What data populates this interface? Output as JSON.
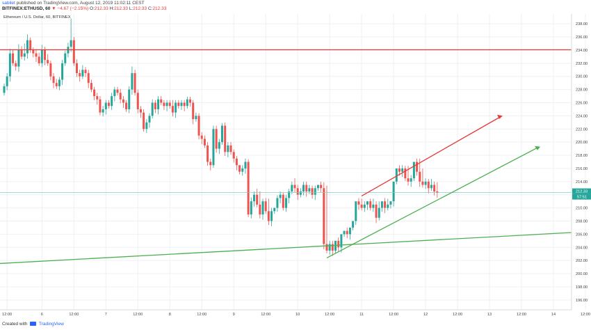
{
  "header": {
    "author": "sabilet",
    "published_text": "published on TradingView.com, August 12, 2019 11:02:11 CEST",
    "symbol": "BITFINEX:ETHUSD, 60",
    "change_symbol": "▼",
    "change_text": "−4.67 (−2.15%)",
    "o_label": "O:",
    "o_value": "212.33",
    "h_label": "H:",
    "h_value": "212.33",
    "l_label": "L:",
    "l_value": "212.33",
    "c_label": "C:",
    "c_value": "212.33"
  },
  "footer": {
    "prefix": "Created with",
    "brand": "TradingView"
  },
  "colors": {
    "up": "#26a69a",
    "down": "#ef5350",
    "resistance": "#e53935",
    "support": "#4caf50",
    "price_line": "#80cbc4",
    "grid": "#eef0f3"
  },
  "chart_data": {
    "type": "candlestick",
    "title": "Ethereum / U.S. Dollar, 60, BITFINEX",
    "ylim": [
      194.5,
      239.5
    ],
    "y_ticks": [
      "196.00",
      "198.00",
      "200.00",
      "202.00",
      "204.00",
      "206.00",
      "208.00",
      "210.00",
      "212.00",
      "214.00",
      "216.00",
      "218.00",
      "220.00",
      "222.00",
      "224.00",
      "226.00",
      "228.00",
      "230.00",
      "232.00",
      "234.00",
      "236.00",
      "238.00"
    ],
    "x_ticks": [
      {
        "label": "12:00",
        "i": 1
      },
      {
        "label": "6",
        "i": 13
      },
      {
        "label": "12:00",
        "i": 24
      },
      {
        "label": "7",
        "i": 35
      },
      {
        "label": "12:00",
        "i": 46
      },
      {
        "label": "8",
        "i": 57
      },
      {
        "label": "12:00",
        "i": 68
      },
      {
        "label": "9",
        "i": 79
      },
      {
        "label": "12:00",
        "i": 90
      },
      {
        "label": "10",
        "i": 101
      },
      {
        "label": "12:00",
        "i": 112
      },
      {
        "label": "11",
        "i": 123
      },
      {
        "label": "12:00",
        "i": 134
      },
      {
        "label": "12",
        "i": 145
      },
      {
        "label": "12:00",
        "i": 156
      },
      {
        "label": "13",
        "i": 167
      },
      {
        "label": "12:00",
        "i": 178
      },
      {
        "label": "14",
        "i": 189
      },
      {
        "label": "12:00",
        "i": 200
      }
    ],
    "last_price": "212.33",
    "countdown": "57:51",
    "closes": [
      228.5,
      230,
      233.5,
      232,
      231.5,
      234,
      233,
      233.5,
      235.5,
      234,
      233.5,
      233,
      232,
      234,
      232.5,
      232,
      230,
      229,
      228.5,
      229.5,
      232,
      233.5,
      234.5,
      235.5,
      232,
      230.5,
      230,
      231,
      230.5,
      229,
      228,
      227,
      226.5,
      224.5,
      225,
      226,
      225.5,
      227,
      228,
      227.5,
      226.5,
      226,
      225,
      228,
      230.5,
      227.5,
      225,
      224.5,
      222,
      223,
      224,
      226,
      225,
      226.5,
      226,
      225.5,
      226,
      225.5,
      224.5,
      226,
      225.5,
      226,
      225.5,
      226.5,
      226,
      223.5,
      224,
      221,
      220.5,
      219.5,
      217,
      216.5,
      222,
      219,
      220,
      222.5,
      218.5,
      219.5,
      218.5,
      217.5,
      216.5,
      215.5,
      216,
      217,
      209,
      211,
      212,
      210.5,
      209,
      211,
      209.5,
      208,
      209.5,
      210,
      211.5,
      212,
      210,
      211.5,
      212.5,
      213.5,
      213,
      212,
      212.5,
      213.5,
      212.5,
      213,
      212,
      213,
      213.5,
      213,
      204.5,
      203.5,
      204.5,
      203.5,
      205,
      204,
      206,
      206.5,
      206,
      207,
      208,
      211,
      210.5,
      210,
      210.5,
      211,
      210,
      210.5,
      208.5,
      210,
      211,
      210,
      210.5,
      211,
      214,
      216,
      215.5,
      216,
      214.5,
      214,
      214.5,
      217,
      215.5,
      214,
      213.5,
      214,
      213,
      213.5,
      212.5,
      212.33
    ],
    "opens": [
      227.5,
      228.5,
      230,
      233.5,
      232,
      231.5,
      234,
      233,
      233.5,
      235.5,
      234,
      233.5,
      233,
      232,
      234,
      232.5,
      232,
      230,
      229,
      228.5,
      229.5,
      232,
      233.5,
      234.5,
      235.5,
      232,
      230.5,
      230,
      231,
      230.5,
      229,
      228,
      227,
      226.5,
      224.5,
      225,
      226,
      225.5,
      227,
      228,
      227.5,
      226.5,
      226,
      225,
      228,
      230.5,
      227.5,
      225,
      224.5,
      222,
      223,
      224,
      226,
      225,
      226.5,
      226,
      225.5,
      226,
      225.5,
      224.5,
      226,
      225.5,
      226,
      225.5,
      226.5,
      226,
      223.5,
      224,
      221,
      220.5,
      219.5,
      217,
      216.5,
      222,
      219,
      220,
      222.5,
      218.5,
      219.5,
      218.5,
      217.5,
      216.5,
      215.5,
      216,
      217,
      209,
      211,
      212,
      210.5,
      209,
      211,
      209.5,
      208,
      209.5,
      210,
      211.5,
      212,
      210,
      211.5,
      212.5,
      213.5,
      213,
      212,
      212.5,
      213.5,
      212.5,
      213,
      212,
      213,
      213.5,
      213,
      204.5,
      203.5,
      204.5,
      203.5,
      205,
      204,
      206,
      206.5,
      206,
      207,
      208,
      211,
      210.5,
      210,
      210.5,
      211,
      210,
      210.5,
      208.5,
      210,
      211,
      210,
      210.5,
      211,
      214,
      216,
      215.5,
      216,
      214.5,
      214,
      214.5,
      217,
      215.5,
      214,
      213.5,
      214,
      213,
      213.5,
      212.5
    ],
    "highs": [
      228.9,
      230.5,
      234.2,
      234,
      232.4,
      234.9,
      234.6,
      235,
      236.4,
      235.9,
      234.4,
      234,
      233.6,
      234.8,
      234.5,
      233.4,
      232.4,
      230.5,
      229.6,
      229.9,
      232.5,
      233.9,
      235.1,
      238.8,
      236,
      232.6,
      231,
      231.7,
      231.4,
      231,
      229.5,
      228.4,
      227.5,
      227,
      225.5,
      226.4,
      226.4,
      227.5,
      228.4,
      228.4,
      228.1,
      227,
      226.4,
      228.5,
      231.5,
      231,
      228,
      225.5,
      225,
      223.5,
      224.4,
      226.5,
      226.4,
      227,
      227,
      226.4,
      226.4,
      226.4,
      226.4,
      226.4,
      226.4,
      226.4,
      226.4,
      226.9,
      226.9,
      226.4,
      224.5,
      224.4,
      221.5,
      221,
      220,
      217.5,
      222.5,
      222.5,
      220.5,
      222.9,
      223,
      220,
      220,
      218.9,
      217.9,
      216.4,
      216.5,
      217.5,
      217.4,
      211.6,
      212.5,
      212.9,
      212.5,
      211.4,
      211.5,
      211.4,
      210,
      210,
      211.9,
      212.5,
      212.4,
      212,
      212.9,
      214,
      214.5,
      213.5,
      213,
      214,
      214,
      213.5,
      213.4,
      213.4,
      213.5,
      214,
      213.9,
      213.4,
      205,
      205,
      205,
      205.5,
      205.5,
      206.5,
      207,
      207,
      207.5,
      208.5,
      211.5,
      211.4,
      211,
      211,
      211.4,
      211.4,
      211,
      211,
      210.5,
      211.5,
      211.4,
      211,
      211.4,
      214.5,
      216.5,
      216.5,
      216.4,
      216.4,
      215,
      215,
      217.5,
      217.5,
      216,
      214.5,
      214.4,
      214.4,
      214,
      213.9,
      213
    ]
  }
}
